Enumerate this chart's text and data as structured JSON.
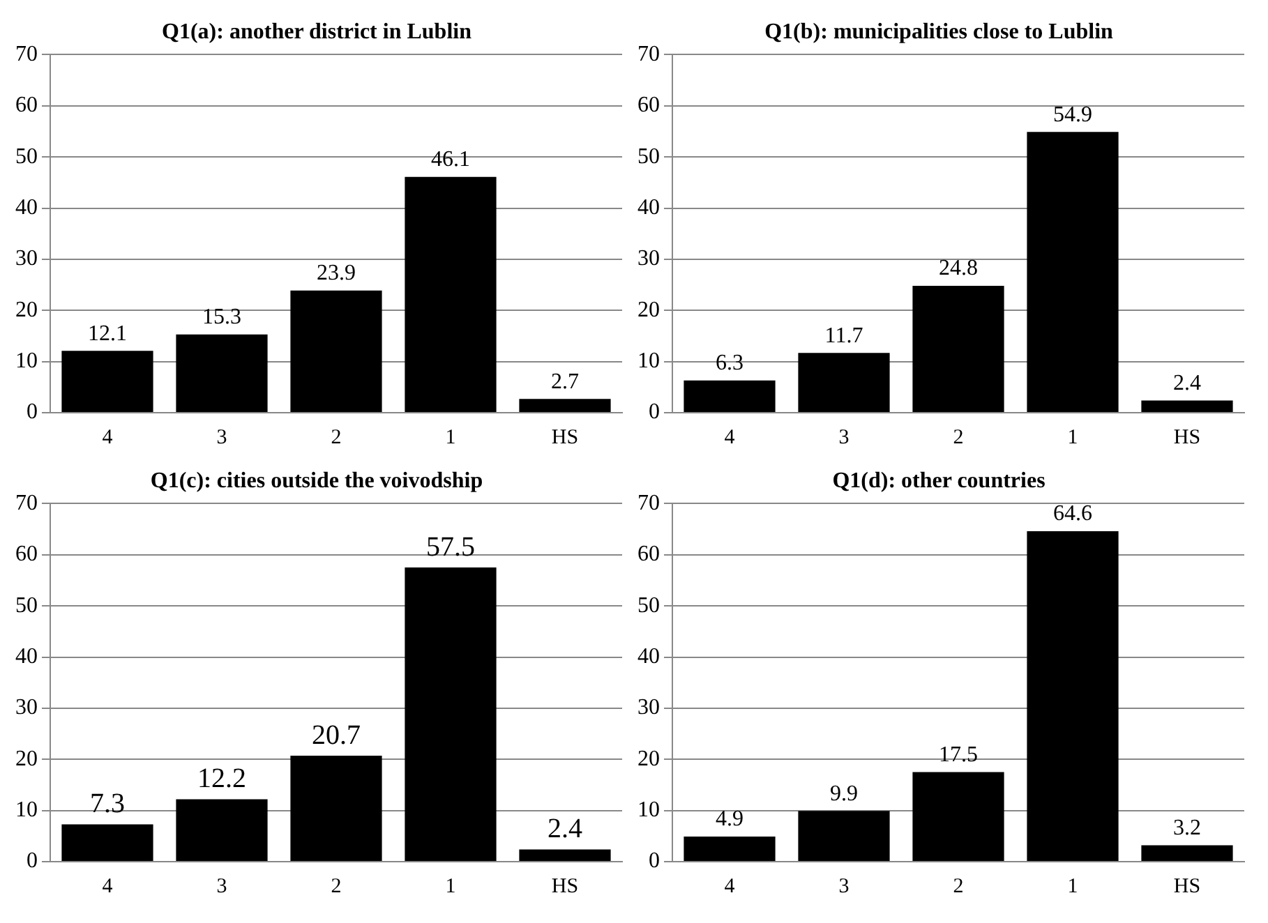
{
  "chart_data": [
    {
      "type": "bar",
      "title": "Q1(a): another district in Lublin",
      "categories": [
        "4",
        "3",
        "2",
        "1",
        "HS"
      ],
      "values": [
        12.1,
        15.3,
        23.9,
        46.1,
        2.7
      ],
      "color": "#000000",
      "ylim": [
        0,
        70
      ],
      "yticks": [
        0,
        10,
        20,
        30,
        40,
        50,
        60,
        70
      ],
      "grid": "y",
      "data_labels": true
    },
    {
      "type": "bar",
      "title": "Q1(b): municipalities close to Lublin",
      "categories": [
        "4",
        "3",
        "2",
        "1",
        "HS"
      ],
      "values": [
        6.3,
        11.7,
        24.8,
        54.9,
        2.4
      ],
      "color": "#000000",
      "ylim": [
        0,
        70
      ],
      "yticks": [
        0,
        10,
        20,
        30,
        40,
        50,
        60,
        70
      ],
      "grid": "y",
      "data_labels": true
    },
    {
      "type": "bar",
      "title": "Q1(c): cities outside the voivodship",
      "categories": [
        "4",
        "3",
        "2",
        "1",
        "HS"
      ],
      "values": [
        7.3,
        12.2,
        20.7,
        57.5,
        2.4
      ],
      "color": "#000000",
      "ylim": [
        0,
        70
      ],
      "yticks": [
        0,
        10,
        20,
        30,
        40,
        50,
        60,
        70
      ],
      "grid": "y",
      "data_labels": true
    },
    {
      "type": "bar",
      "title": "Q1(d): other countries",
      "categories": [
        "4",
        "3",
        "2",
        "1",
        "HS"
      ],
      "values": [
        4.9,
        9.9,
        17.5,
        64.6,
        3.2
      ],
      "color": "#000000",
      "ylim": [
        0,
        70
      ],
      "yticks": [
        0,
        10,
        20,
        30,
        40,
        50,
        60,
        70
      ],
      "grid": "y",
      "data_labels": true
    }
  ]
}
